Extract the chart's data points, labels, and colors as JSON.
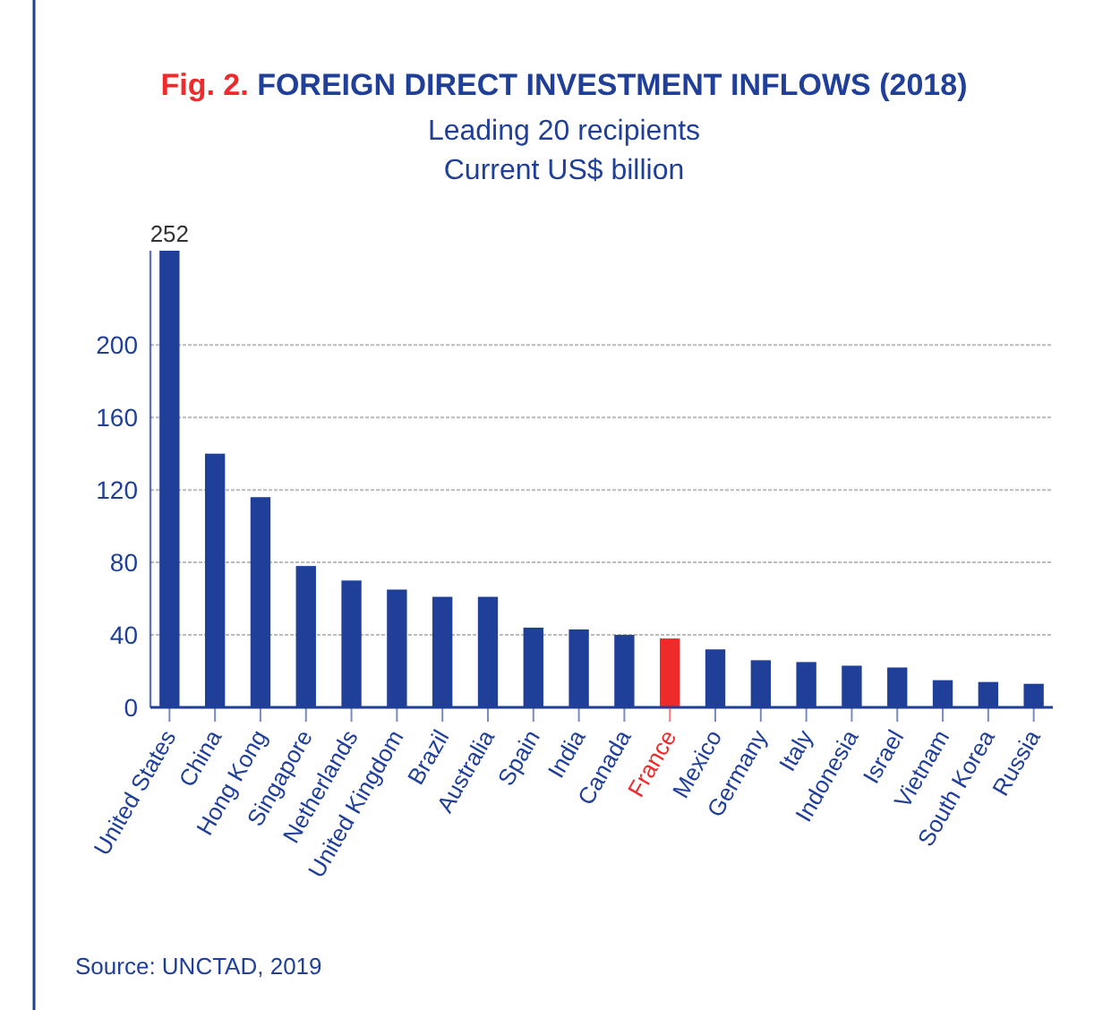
{
  "chart_data": {
    "type": "bar",
    "title": "Fig. 2. FOREIGN DIRECT INVESTMENT INFLOWS (2018)",
    "subtitle": "Leading 20 recipients\nCurrent US$ billion",
    "categories": [
      "United States",
      "China",
      "Hong Kong",
      "Singapore",
      "Netherlands",
      "United Kingdom",
      "Brazil",
      "Australia",
      "Spain",
      "India",
      "Canada",
      "France",
      "Mexico",
      "Germany",
      "Italy",
      "Indonesia",
      "Israel",
      "Vietnam",
      "South Korea",
      "Russia"
    ],
    "values": [
      252,
      140,
      116,
      78,
      70,
      65,
      61,
      61,
      44,
      43,
      40,
      38,
      32,
      26,
      25,
      23,
      22,
      15,
      14,
      13
    ],
    "colors": [
      "#1f3f99",
      "#1f3f99",
      "#1f3f99",
      "#1f3f99",
      "#1f3f99",
      "#1f3f99",
      "#1f3f99",
      "#1f3f99",
      "#1f3f99",
      "#1f3f99",
      "#1f3f99",
      "#ee2a2a",
      "#1f3f99",
      "#1f3f99",
      "#1f3f99",
      "#1f3f99",
      "#1f3f99",
      "#1f3f99",
      "#1f3f99",
      "#1f3f99"
    ],
    "value_labels": [
      "252",
      null,
      null,
      null,
      null,
      null,
      null,
      null,
      null,
      null,
      null,
      null,
      null,
      null,
      null,
      null,
      null,
      null,
      null,
      null
    ],
    "ylim": [
      0,
      252
    ],
    "yticks": [
      0,
      40,
      80,
      120,
      160,
      200
    ],
    "grid": "y",
    "annotations": [
      "Source: UNCTAD, 2019"
    ]
  }
}
